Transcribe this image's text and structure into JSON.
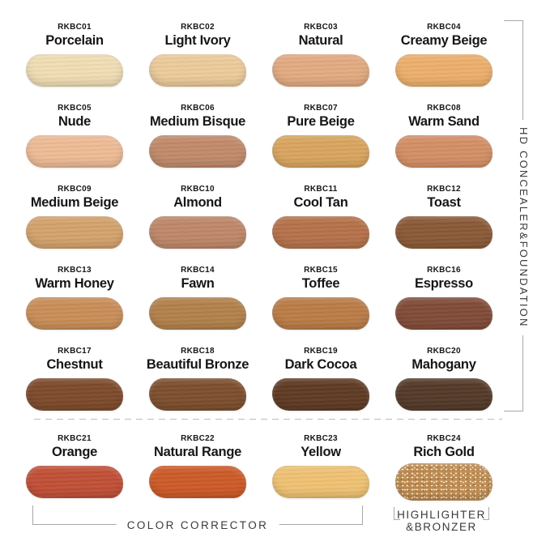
{
  "shades": [
    {
      "code": "RKBC01",
      "name": "Porcelain",
      "color": "#f0ddb4"
    },
    {
      "code": "RKBC02",
      "name": "Light Ivory",
      "color": "#ecca9a"
    },
    {
      "code": "RKBC03",
      "name": "Natural",
      "color": "#e2aa80"
    },
    {
      "code": "RKBC04",
      "name": "Creamy Beige",
      "color": "#ecaf6b"
    },
    {
      "code": "RKBC05",
      "name": "Nude",
      "color": "#edbb95"
    },
    {
      "code": "RKBC06",
      "name": "Medium Bisque",
      "color": "#c18a6a"
    },
    {
      "code": "RKBC07",
      "name": "Pure Beige",
      "color": "#d9a55e"
    },
    {
      "code": "RKBC08",
      "name": "Warm Sand",
      "color": "#d38f66"
    },
    {
      "code": "RKBC09",
      "name": "Medium Beige",
      "color": "#d3a26c"
    },
    {
      "code": "RKBC10",
      "name": "Almond",
      "color": "#be8769"
    },
    {
      "code": "RKBC11",
      "name": "Cool Tan",
      "color": "#b5714a"
    },
    {
      "code": "RKBC12",
      "name": "Toast",
      "color": "#8a5936"
    },
    {
      "code": "RKBC13",
      "name": "Warm Honey",
      "color": "#c98e58"
    },
    {
      "code": "RKBC14",
      "name": "Fawn",
      "color": "#b2814b"
    },
    {
      "code": "RKBC15",
      "name": "Toffee",
      "color": "#ba7c47"
    },
    {
      "code": "RKBC16",
      "name": "Espresso",
      "color": "#814b38"
    },
    {
      "code": "RKBC17",
      "name": "Chestnut",
      "color": "#7d4a2b"
    },
    {
      "code": "RKBC18",
      "name": "Beautiful Bronze",
      "color": "#7c4e2d"
    },
    {
      "code": "RKBC19",
      "name": "Dark Cocoa",
      "color": "#5e3a23"
    },
    {
      "code": "RKBC20",
      "name": "Mahogany",
      "color": "#533928"
    },
    {
      "code": "RKBC21",
      "name": "Orange",
      "color": "#c14f36"
    },
    {
      "code": "RKBC22",
      "name": "Natural Range",
      "color": "#cd5a27"
    },
    {
      "code": "RKBC23",
      "name": "Yellow",
      "color": "#efc273"
    },
    {
      "code": "RKBC24",
      "name": "Rich Gold",
      "color": "#bd8a50",
      "sparkle": true
    }
  ],
  "groups": {
    "hd_label": "HD CONCEALER&FOUNDATION",
    "color_corrector_label": "COLOR CORRECTOR",
    "highlighter_line1": "HIGHLIGHTER",
    "highlighter_line2": "&BRONZER"
  },
  "styles": {
    "bracket_line_color": "#a8a8a8",
    "group_label_color": "#3a3a3a",
    "shade_text_color": "#161616"
  }
}
